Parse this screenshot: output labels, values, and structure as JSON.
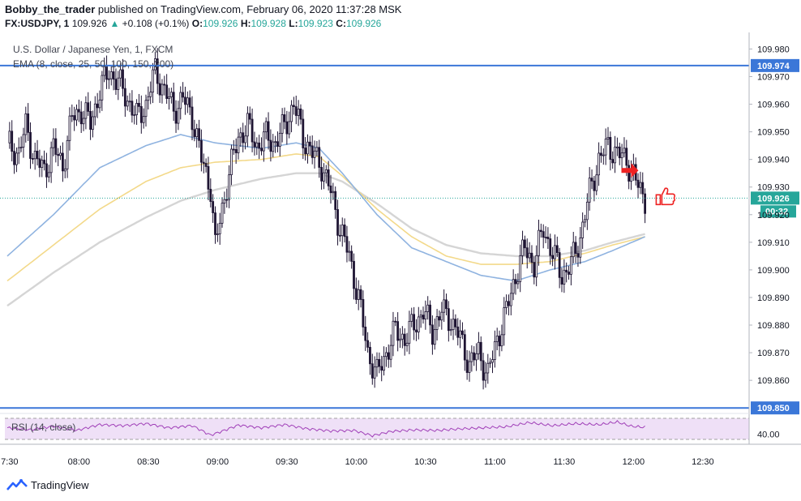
{
  "header": {
    "author": "Bobby_the_trader",
    "published_text": "published on TradingView.com, February 06, 2020 11:37:28 MSK",
    "symbol": "FX:USDJPY, 1",
    "last": "109.926",
    "change": "+0.108 (+0.1%)",
    "o_label": "O:",
    "o_value": "109.926",
    "h_label": "H:",
    "h_value": "109.928",
    "l_label": "L:",
    "l_value": "109.923",
    "c_label": "C:",
    "c_value": "109.926"
  },
  "legend": {
    "instrument": "U.S. Dollar / Japanese Yen, 1, FXCM",
    "ema": "EMA (8, close, 25, 50, 100, 150, 200)",
    "rsi": "RSI (14, close)"
  },
  "footer": {
    "brand": "TradingView"
  },
  "colors": {
    "up": "#ffffff",
    "down": "#1e1433",
    "wick": "#1e1433",
    "ema_blue": "#8fb3e0",
    "ema_yellow": "#f3d98a",
    "ema_gray": "#d5d5d5",
    "hline": "#3b77d8",
    "rsi_line": "#a03fb8",
    "rsi_band": "#efe0f7",
    "arrow": "#ee2222"
  },
  "chart_data": {
    "type": "candlestick",
    "y_range": [
      109.848,
      109.986
    ],
    "y_ticks": [
      "109.980",
      "109.970",
      "109.960",
      "109.950",
      "109.940",
      "109.930",
      "109.920",
      "109.910",
      "109.900",
      "109.890",
      "109.880",
      "109.870",
      "109.860"
    ],
    "x_ticks": [
      "7:30",
      "08:00",
      "08:30",
      "09:00",
      "09:30",
      "10:00",
      "10:30",
      "11:00",
      "11:30",
      "12:00",
      "12:30"
    ],
    "horizontal_levels": [
      {
        "value": 109.974,
        "label": "109.974"
      },
      {
        "value": 109.85,
        "label": "109.850"
      }
    ],
    "last_price": {
      "value": 109.926,
      "label": "109.926",
      "countdown": "00:32"
    },
    "rsi": {
      "tick": "40.00",
      "upper": 70,
      "lower": 30
    },
    "path_points": [
      [
        0,
        109.946
      ],
      [
        5,
        109.942
      ],
      [
        8,
        109.952
      ],
      [
        12,
        109.94
      ],
      [
        16,
        109.936
      ],
      [
        20,
        109.944
      ],
      [
        24,
        109.938
      ],
      [
        28,
        109.955
      ],
      [
        32,
        109.958
      ],
      [
        36,
        109.953
      ],
      [
        40,
        109.965
      ],
      [
        44,
        109.972
      ],
      [
        48,
        109.968
      ],
      [
        52,
        109.962
      ],
      [
        56,
        109.955
      ],
      [
        60,
        109.96
      ],
      [
        64,
        109.972
      ],
      [
        68,
        109.965
      ],
      [
        72,
        109.958
      ],
      [
        76,
        109.962
      ],
      [
        80,
        109.956
      ],
      [
        84,
        109.94
      ],
      [
        88,
        109.93
      ],
      [
        90,
        109.908
      ],
      [
        92,
        109.918
      ],
      [
        96,
        109.935
      ],
      [
        100,
        109.948
      ],
      [
        104,
        109.952
      ],
      [
        108,
        109.945
      ],
      [
        112,
        109.948
      ],
      [
        116,
        109.946
      ],
      [
        120,
        109.952
      ],
      [
        124,
        109.96
      ],
      [
        128,
        109.948
      ],
      [
        132,
        109.942
      ],
      [
        136,
        109.938
      ],
      [
        140,
        109.928
      ],
      [
        144,
        109.915
      ],
      [
        148,
        109.905
      ],
      [
        152,
        109.89
      ],
      [
        156,
        109.87
      ],
      [
        160,
        109.862
      ],
      [
        164,
        109.87
      ],
      [
        168,
        109.878
      ],
      [
        172,
        109.875
      ],
      [
        176,
        109.88
      ],
      [
        180,
        109.885
      ],
      [
        184,
        109.878
      ],
      [
        188,
        109.885
      ],
      [
        192,
        109.882
      ],
      [
        196,
        109.875
      ],
      [
        200,
        109.866
      ],
      [
        204,
        109.87
      ],
      [
        208,
        109.862
      ],
      [
        212,
        109.875
      ],
      [
        216,
        109.885
      ],
      [
        220,
        109.898
      ],
      [
        224,
        109.908
      ],
      [
        228,
        109.902
      ],
      [
        232,
        109.915
      ],
      [
        236,
        109.906
      ],
      [
        240,
        109.898
      ],
      [
        244,
        109.902
      ],
      [
        248,
        109.912
      ],
      [
        252,
        109.928
      ],
      [
        256,
        109.94
      ],
      [
        260,
        109.945
      ],
      [
        264,
        109.942
      ],
      [
        268,
        109.94
      ],
      [
        272,
        109.932
      ],
      [
        276,
        109.926
      ]
    ],
    "ema_blue": [
      [
        0,
        109.905
      ],
      [
        20,
        109.92
      ],
      [
        40,
        109.937
      ],
      [
        60,
        109.945
      ],
      [
        75,
        109.949
      ],
      [
        90,
        109.946
      ],
      [
        110,
        109.944
      ],
      [
        125,
        109.946
      ],
      [
        135,
        109.944
      ],
      [
        145,
        109.935
      ],
      [
        160,
        109.92
      ],
      [
        175,
        109.908
      ],
      [
        190,
        109.903
      ],
      [
        205,
        109.898
      ],
      [
        220,
        109.896
      ],
      [
        235,
        109.9
      ],
      [
        250,
        109.903
      ],
      [
        262,
        109.907
      ],
      [
        276,
        109.912
      ]
    ],
    "ema_yellow": [
      [
        0,
        109.896
      ],
      [
        20,
        109.909
      ],
      [
        40,
        109.922
      ],
      [
        60,
        109.932
      ],
      [
        75,
        109.937
      ],
      [
        90,
        109.939
      ],
      [
        110,
        109.94
      ],
      [
        125,
        109.942
      ],
      [
        135,
        109.941
      ],
      [
        145,
        109.934
      ],
      [
        160,
        109.922
      ],
      [
        175,
        109.912
      ],
      [
        190,
        109.905
      ],
      [
        205,
        109.902
      ],
      [
        220,
        109.902
      ],
      [
        235,
        109.903
      ],
      [
        250,
        109.906
      ],
      [
        262,
        109.909
      ],
      [
        276,
        109.912
      ]
    ],
    "ema_gray": [
      [
        0,
        109.887
      ],
      [
        20,
        109.899
      ],
      [
        40,
        109.91
      ],
      [
        60,
        109.919
      ],
      [
        75,
        109.925
      ],
      [
        90,
        109.929
      ],
      [
        110,
        109.933
      ],
      [
        125,
        109.935
      ],
      [
        135,
        109.935
      ],
      [
        145,
        109.932
      ],
      [
        160,
        109.924
      ],
      [
        175,
        109.915
      ],
      [
        190,
        109.909
      ],
      [
        205,
        109.906
      ],
      [
        220,
        109.905
      ],
      [
        235,
        109.905
      ],
      [
        250,
        109.907
      ],
      [
        262,
        109.91
      ],
      [
        276,
        109.913
      ]
    ],
    "rsi_points": [
      [
        0,
        52
      ],
      [
        10,
        48
      ],
      [
        20,
        55
      ],
      [
        30,
        47
      ],
      [
        40,
        58
      ],
      [
        50,
        56
      ],
      [
        60,
        60
      ],
      [
        70,
        52
      ],
      [
        80,
        56
      ],
      [
        88,
        38
      ],
      [
        92,
        44
      ],
      [
        100,
        57
      ],
      [
        110,
        52
      ],
      [
        120,
        58
      ],
      [
        130,
        50
      ],
      [
        140,
        46
      ],
      [
        150,
        47
      ],
      [
        158,
        37
      ],
      [
        166,
        45
      ],
      [
        176,
        48
      ],
      [
        186,
        47
      ],
      [
        196,
        50
      ],
      [
        206,
        52
      ],
      [
        216,
        54
      ],
      [
        226,
        62
      ],
      [
        236,
        56
      ],
      [
        246,
        60
      ],
      [
        256,
        58
      ],
      [
        264,
        63
      ],
      [
        270,
        55
      ],
      [
        276,
        53
      ]
    ]
  }
}
